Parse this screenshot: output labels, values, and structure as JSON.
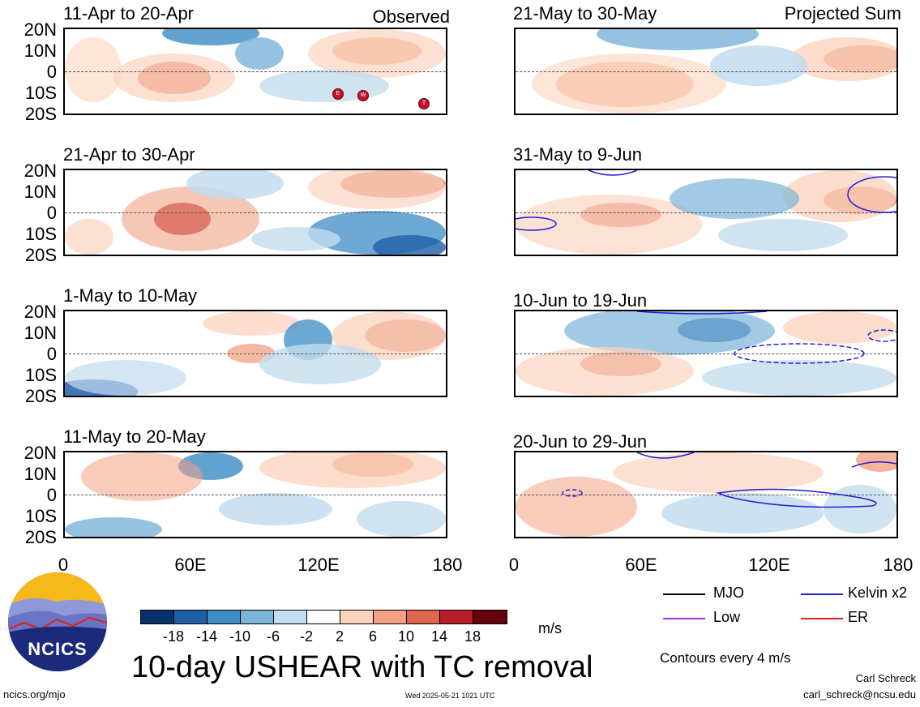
{
  "header": {
    "observed_label": "Observed",
    "projected_label": "Projected Sum"
  },
  "panels_left": [
    {
      "title": "11-Apr to 20-Apr"
    },
    {
      "title": "21-Apr to 30-Apr"
    },
    {
      "title": "1-May to 10-May"
    },
    {
      "title": "11-May to 20-May"
    }
  ],
  "panels_right": [
    {
      "title": "21-May to 30-May"
    },
    {
      "title": "31-May to 9-Jun"
    },
    {
      "title": "10-Jun to 19-Jun"
    },
    {
      "title": "20-Jun to 29-Jun"
    }
  ],
  "lat_ticks": [
    "20N",
    "10N",
    "0",
    "10S",
    "20S"
  ],
  "lon_ticks": [
    "0",
    "60E",
    "120E",
    "180"
  ],
  "tc_markers": [
    "E",
    "W",
    "T"
  ],
  "colorbar": {
    "labels": [
      "-18",
      "-14",
      "-10",
      "-6",
      "-2",
      "2",
      "6",
      "10",
      "14",
      "18"
    ],
    "unit": "m/s",
    "colors": [
      "#08306b",
      "#1f5fa8",
      "#3d8cc4",
      "#7ab3d8",
      "#c3dcee",
      "#ffffff",
      "#fbd3bd",
      "#f2a183",
      "#e0654e",
      "#b81e2a",
      "#67000d"
    ]
  },
  "legend": {
    "items": [
      {
        "label": "MJO",
        "color": "#000000",
        "style": "solid"
      },
      {
        "label": "Kelvin x2",
        "color": "#1f1fd6",
        "style": "solid"
      },
      {
        "label": "Low",
        "color": "#9b30e0",
        "style": "solid"
      },
      {
        "label": "ER",
        "color": "#e0201a",
        "style": "solid"
      }
    ],
    "contour_note": "Contours every 4 m/s"
  },
  "footer": {
    "main_title": "10-day USHEAR with TC removal",
    "logo_text": "NCICS",
    "site": "ncics.org/mjo",
    "timestamp": "Wed 2025-05-21 1021 UTC",
    "author": "Carl Schreck",
    "email": "carl_schreck@ncsu.edu"
  }
}
